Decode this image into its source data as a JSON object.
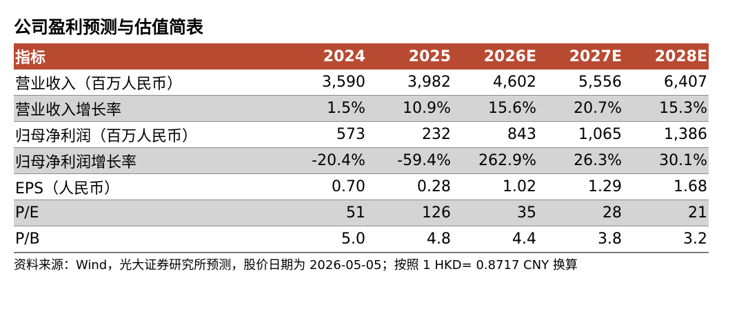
{
  "title": "公司盈利预测与估值简表",
  "table": {
    "header": [
      "指标",
      "2024",
      "2025",
      "2026E",
      "2027E",
      "2028E"
    ],
    "rows": [
      {
        "label": "营业收入（百万人民币）",
        "values": [
          "3,590",
          "3,982",
          "4,602",
          "5,556",
          "6,407"
        ]
      },
      {
        "label": "营业收入增长率",
        "values": [
          "1.5%",
          "10.9%",
          "15.6%",
          "20.7%",
          "15.3%"
        ]
      },
      {
        "label": "归母净利润（百万人民币）",
        "values": [
          "573",
          "232",
          "843",
          "1,065",
          "1,386"
        ]
      },
      {
        "label": "归母净利润增长率",
        "values": [
          "-20.4%",
          "-59.4%",
          "262.9%",
          "26.3%",
          "30.1%"
        ]
      },
      {
        "label": "EPS（人民币）",
        "values": [
          "0.70",
          "0.28",
          "1.02",
          "1.29",
          "1.68"
        ]
      },
      {
        "label": "P/E",
        "values": [
          "51",
          "126",
          "35",
          "28",
          "21"
        ]
      },
      {
        "label": "P/B",
        "values": [
          "5.0",
          "4.8",
          "4.4",
          "3.8",
          "3.2"
        ]
      }
    ]
  },
  "source": "资料来源：Wind，光大证券研究所预测，股价日期为 2026-05-05；按照 1 HKD= 0.8717 CNY 换算",
  "colors": {
    "header_bg": "#b94a32",
    "header_text": "#ffffff",
    "shaded_row": "#d4d4d4"
  }
}
